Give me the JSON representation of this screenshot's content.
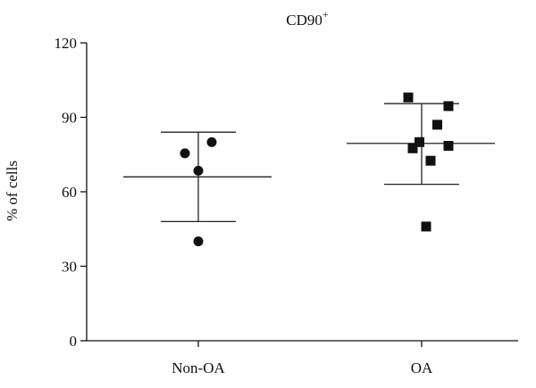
{
  "chart_data": {
    "type": "scatter",
    "title": "CD90",
    "title_superscript": "+",
    "ylabel": "% of cells",
    "xlabel": "",
    "categories": [
      "Non-OA",
      "OA"
    ],
    "ylim": [
      0,
      120
    ],
    "yticks": [
      0,
      30,
      60,
      90,
      120
    ],
    "grid": false,
    "series": [
      {
        "category": "Non-OA",
        "marker": "circle",
        "color": "#111111",
        "points": [
          {
            "offset": -0.06,
            "y": 75.5
          },
          {
            "offset": 0.06,
            "y": 80
          },
          {
            "offset": 0.0,
            "y": 68.5
          },
          {
            "offset": 0.0,
            "y": 40
          }
        ],
        "mean": 66,
        "upper": 84,
        "lower": 48
      },
      {
        "category": "OA",
        "marker": "square",
        "color": "#111111",
        "points": [
          {
            "offset": -0.06,
            "y": 98
          },
          {
            "offset": 0.12,
            "y": 94.5
          },
          {
            "offset": 0.07,
            "y": 87
          },
          {
            "offset": -0.01,
            "y": 80
          },
          {
            "offset": -0.04,
            "y": 77.5
          },
          {
            "offset": 0.12,
            "y": 78.5
          },
          {
            "offset": 0.04,
            "y": 72.5
          },
          {
            "offset": 0.02,
            "y": 46
          }
        ],
        "mean": 79.5,
        "upper": 95.5,
        "lower": 63
      }
    ]
  }
}
